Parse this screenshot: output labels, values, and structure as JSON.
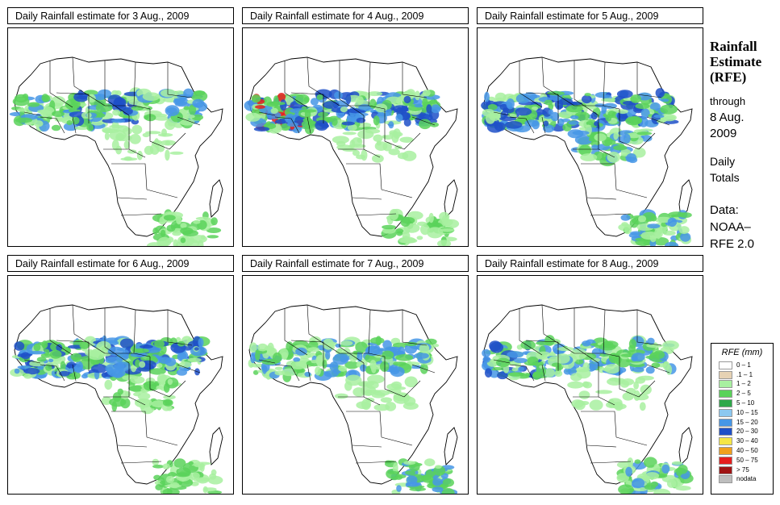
{
  "panels": [
    {
      "title": "Daily Rainfall estimate for  3 Aug., 2009"
    },
    {
      "title": "Daily Rainfall estimate for  4 Aug., 2009"
    },
    {
      "title": "Daily Rainfall estimate for  5 Aug., 2009"
    },
    {
      "title": "Daily Rainfall estimate for  6 Aug., 2009"
    },
    {
      "title": "Daily Rainfall estimate for  7 Aug., 2009"
    },
    {
      "title": "Daily Rainfall estimate for  8 Aug., 2009"
    }
  ],
  "side": {
    "heading1": "Rainfall",
    "heading2": "Estimate",
    "heading3": "(RFE)",
    "through": "through",
    "date1": "8 Aug.",
    "date2": "2009",
    "daily": "Daily",
    "totals": "Totals",
    "data_label": "Data:",
    "source1": "NOAA–",
    "source2": "RFE 2.0"
  },
  "legend": {
    "title": "RFE (mm)",
    "items": [
      {
        "label": "0 – 1",
        "color": "#ffffff"
      },
      {
        "label": ".1 – 1",
        "color": "#e6d2b4"
      },
      {
        "label": "1 – 2",
        "color": "#a8f0a0"
      },
      {
        "label": "2 – 5",
        "color": "#5ad25a"
      },
      {
        "label": "5 – 10",
        "color": "#2ea84a"
      },
      {
        "label": "10 – 15",
        "color": "#8cc8f0"
      },
      {
        "label": "15 – 20",
        "color": "#4696e6"
      },
      {
        "label": "20 – 30",
        "color": "#1e50c8"
      },
      {
        "label": "30 – 40",
        "color": "#f5e646"
      },
      {
        "label": "40 – 50",
        "color": "#f0a01e"
      },
      {
        "label": "50 – 75",
        "color": "#e61e1e"
      },
      {
        "label": "> 75",
        "color": "#a01414"
      },
      {
        "label": "nodata",
        "color": "#bebebe"
      }
    ]
  },
  "rain_intensity": [
    [
      2,
      3,
      2,
      0,
      1
    ],
    [
      4,
      3,
      3,
      0,
      1
    ],
    [
      3,
      3,
      3,
      2,
      2
    ],
    [
      3,
      3,
      3,
      1,
      1
    ],
    [
      2,
      2,
      2,
      0,
      2
    ],
    [
      3,
      2,
      2,
      0,
      2
    ]
  ]
}
